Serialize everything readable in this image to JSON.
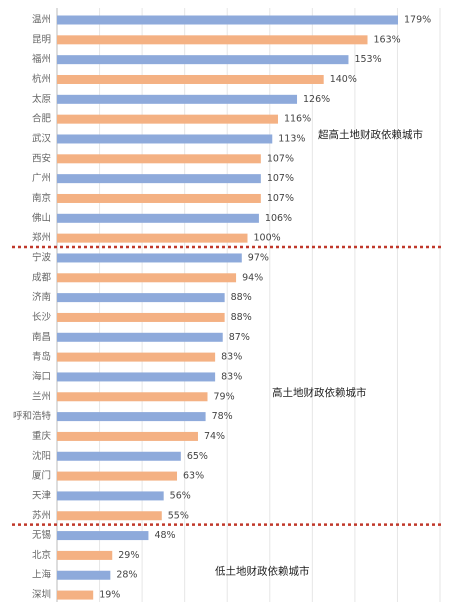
{
  "chart_data": {
    "type": "hbar",
    "categories": [
      "温州",
      "昆明",
      "福州",
      "杭州",
      "太原",
      "合肥",
      "武汉",
      "西安",
      "广州",
      "南京",
      "佛山",
      "郑州",
      "宁波",
      "成都",
      "济南",
      "长沙",
      "南昌",
      "青岛",
      "海口",
      "兰州",
      "呼和浩特",
      "重庆",
      "沈阳",
      "厦门",
      "天津",
      "苏州",
      "无锡",
      "北京",
      "上海",
      "深圳"
    ],
    "values": [
      179,
      163,
      153,
      140,
      126,
      116,
      113,
      107,
      107,
      107,
      106,
      100,
      97,
      94,
      88,
      88,
      87,
      83,
      83,
      79,
      78,
      74,
      65,
      63,
      56,
      55,
      48,
      29,
      28,
      19
    ],
    "value_labels": [
      "179%",
      "163%",
      "153%",
      "140%",
      "126%",
      "116%",
      "113%",
      "107%",
      "107%",
      "107%",
      "106%",
      "100%",
      "97%",
      "94%",
      "88%",
      "88%",
      "87%",
      "83%",
      "83%",
      "79%",
      "78%",
      "74%",
      "65%",
      "63%",
      "56%",
      "55%",
      "48%",
      "29%",
      "28%",
      "19%"
    ],
    "colors": [
      "#8eaadb",
      "#f4b183"
    ],
    "xlim": [
      0,
      200
    ],
    "grid": true,
    "annotations": [
      {
        "text": "超高土地财政依赖城市",
        "last_index": 11
      },
      {
        "text": "高土地财政依赖城市",
        "last_index": 25
      },
      {
        "text": "低土地财政依赖城市",
        "last_index": 29
      }
    ],
    "separator_color": "#c0392b"
  }
}
